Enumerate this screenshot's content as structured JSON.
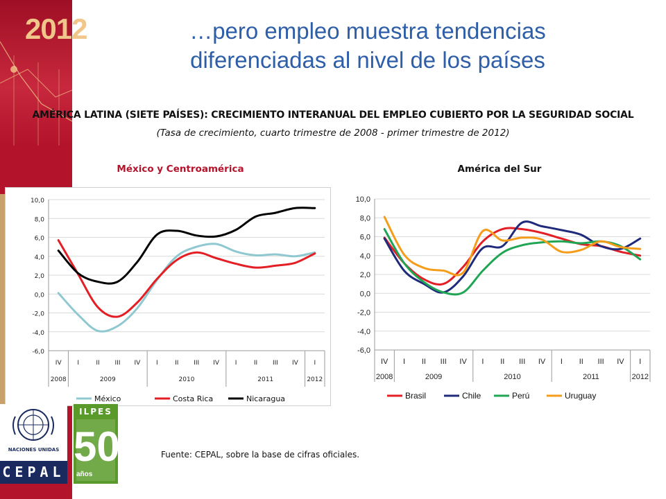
{
  "slide": {
    "year_badge": "2012",
    "headline_line1": "…pero empleo muestra tendencias",
    "headline_line2": "diferenciadas al nivel de los países",
    "subtitle": "AMÉRICA LATINA (SIETE PAÍSES): CRECIMIENTO INTERANUAL DEL EMPLEO CUBIERTO POR LA SEGURIDAD SOCIAL",
    "subsubtitle": "(Tasa de crecimiento, cuarto trimestre de 2008  -  primer trimestre de 2012)",
    "source": "Fuente: CEPAL, sobre la base de cifras oficiales.",
    "logos": {
      "un_text": "NACIONES UNIDAS",
      "cepal_text": "CEPAL",
      "ilpes_text": "ILPES",
      "ilpes_number": "50",
      "ilpes_years": "años"
    },
    "colors": {
      "brand_red": "#b3132b",
      "headline_blue": "#2e5ea8"
    }
  },
  "chart_data": [
    {
      "type": "line",
      "title": "México y Centroamérica",
      "ylim": [
        -6,
        10
      ],
      "yticks": [
        "10,0",
        "8,0",
        "6,0",
        "4,0",
        "2,0",
        "0,0",
        "-2,0",
        "-4,0",
        "-6,0"
      ],
      "categories": [
        "IV",
        "I",
        "II",
        "III",
        "IV",
        "I",
        "II",
        "III",
        "IV",
        "I",
        "II",
        "III",
        "IV",
        "I"
      ],
      "year_groups": [
        {
          "label": "2008",
          "span": 1
        },
        {
          "label": "2009",
          "span": 4
        },
        {
          "label": "2010",
          "span": 4
        },
        {
          "label": "2011",
          "span": 4
        },
        {
          "label": "2012",
          "span": 1
        }
      ],
      "legend_position": "bottom",
      "grid": "horizontal",
      "series": [
        {
          "name": "México",
          "color": "#8fc8d0",
          "values": [
            0.1,
            -2.2,
            -3.9,
            -3.4,
            -1.5,
            1.5,
            4.0,
            5.0,
            5.3,
            4.5,
            4.1,
            4.2,
            4.0,
            4.4
          ]
        },
        {
          "name": "Costa Rica",
          "color": "#e31e24",
          "values": [
            5.7,
            2.1,
            -1.4,
            -2.4,
            -0.9,
            1.6,
            3.6,
            4.4,
            3.8,
            3.2,
            2.8,
            3.0,
            3.3,
            4.3
          ]
        },
        {
          "name": "Nicaragua",
          "color": "#000000",
          "values": [
            4.6,
            2.2,
            1.3,
            1.3,
            3.4,
            6.3,
            6.7,
            6.2,
            6.1,
            6.8,
            8.2,
            8.6,
            9.1,
            9.1
          ]
        }
      ]
    },
    {
      "type": "line",
      "title": "América del Sur",
      "ylim": [
        -6,
        10
      ],
      "yticks": [
        "10,0",
        "8,0",
        "6,0",
        "4,0",
        "2,0",
        "0,0",
        "-2,0",
        "-4,0",
        "-6,0"
      ],
      "categories": [
        "IV",
        "I",
        "II",
        "III",
        "IV",
        "I",
        "II",
        "III",
        "IV",
        "I",
        "II",
        "III",
        "IV",
        "I"
      ],
      "year_groups": [
        {
          "label": "2008",
          "span": 1
        },
        {
          "label": "2009",
          "span": 4
        },
        {
          "label": "2010",
          "span": 4
        },
        {
          "label": "2011",
          "span": 4
        },
        {
          "label": "2012",
          "span": 1
        }
      ],
      "legend_position": "bottom",
      "grid": "horizontal",
      "series": [
        {
          "name": "Brasil",
          "color": "#e31e24",
          "values": [
            5.9,
            3.2,
            1.5,
            1.0,
            2.8,
            5.5,
            6.8,
            6.8,
            6.4,
            5.8,
            5.2,
            5.0,
            4.4,
            4.0
          ]
        },
        {
          "name": "Chile",
          "color": "#1f2a7a",
          "values": [
            5.8,
            2.4,
            1.0,
            0.1,
            1.8,
            4.8,
            5.0,
            7.5,
            7.1,
            6.7,
            6.2,
            5.0,
            4.7,
            5.8
          ]
        },
        {
          "name": "Perú",
          "color": "#1fa553",
          "values": [
            6.8,
            3.2,
            1.2,
            0.1,
            0.1,
            2.4,
            4.3,
            5.1,
            5.4,
            5.5,
            5.3,
            5.5,
            5.0,
            3.6
          ]
        },
        {
          "name": "Uruguay",
          "color": "#f59d1a",
          "values": [
            8.1,
            4.1,
            2.7,
            2.4,
            2.2,
            6.6,
            5.6,
            5.9,
            5.7,
            4.4,
            4.6,
            5.5,
            4.9,
            4.7
          ]
        }
      ]
    }
  ]
}
